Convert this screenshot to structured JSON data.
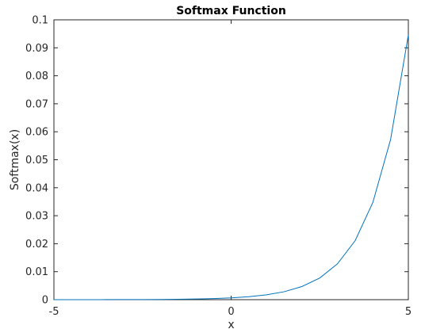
{
  "chart_data": {
    "type": "line",
    "title": "Softmax Function",
    "xlabel": "x",
    "ylabel": "Softmax(x)",
    "xlim": [
      -5,
      5
    ],
    "ylim": [
      0,
      0.1
    ],
    "xticks": [
      -5,
      0,
      5
    ],
    "yticks": [
      0,
      0.01,
      0.02,
      0.03,
      0.04,
      0.05,
      0.06,
      0.07,
      0.08,
      0.09,
      0.1
    ],
    "ytick_labels": [
      "0",
      "0.01",
      "0.02",
      "0.03",
      "0.04",
      "0.05",
      "0.06",
      "0.07",
      "0.08",
      "0.09",
      "0.1"
    ],
    "xtick_labels": [
      "-5",
      "0",
      "5"
    ],
    "grid": false,
    "series": [
      {
        "color": "#0072bd",
        "x": [
          -5,
          -4.5,
          -4,
          -3.5,
          -3,
          -2.5,
          -2,
          -1.5,
          -1,
          -0.5,
          0,
          0.5,
          1,
          1.5,
          2,
          2.5,
          3,
          3.5,
          4,
          4.5,
          5
        ],
        "y": [
          4.3e-06,
          7.1e-06,
          1.17e-05,
          1.92e-05,
          3.17e-05,
          5.23e-05,
          8.62e-05,
          0.000142,
          0.000234,
          0.000386,
          0.000637,
          0.00105,
          0.00173,
          0.00285,
          0.0047,
          0.00775,
          0.0128,
          0.0211,
          0.0348,
          0.0573,
          0.0946
        ]
      }
    ]
  }
}
